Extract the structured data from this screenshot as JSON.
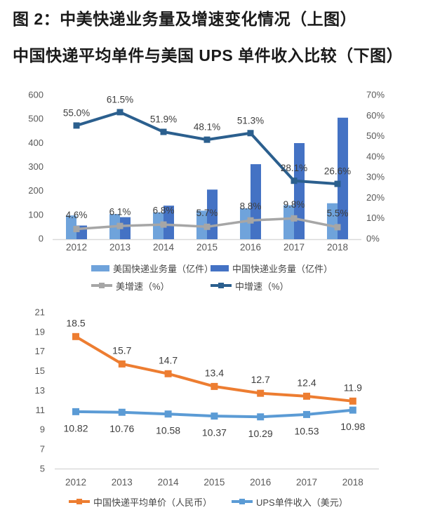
{
  "title": {
    "line1": "图 2：中美快递业务量及增速变化情况（上图）",
    "line2": "中国快递平均单件与美国 UPS 单件收入比较（下图）"
  },
  "colors": {
    "title_text": "#1a1a1a",
    "axis_text": "#595959",
    "data_label_text": "#3d3d3d",
    "axis_line": "#d9d9d9",
    "us_volume_bar": "#6fa3db",
    "cn_volume_bar": "#4472c4",
    "us_growth_line": "#a6a6a6",
    "cn_growth_line": "#2b5f8e",
    "cn_price_line": "#ed7d31",
    "ups_revenue_line": "#5b9bd5"
  },
  "chart_data": [
    {
      "type": "bar",
      "subtype": "combo-bar-line-dual-axis",
      "categories": [
        "2012",
        "2013",
        "2014",
        "2015",
        "2016",
        "2017",
        "2018"
      ],
      "bar_series": [
        {
          "name": "美国快递业务量（亿件）",
          "axis": "left",
          "color": "#6fa3db",
          "values": [
            99,
            105,
            112,
            119,
            129,
            142,
            150
          ]
        },
        {
          "name": "中国快递业务量（亿件）",
          "axis": "left",
          "color": "#4472c4",
          "values": [
            57,
            92,
            140,
            207,
            313,
            401,
            507
          ]
        }
      ],
      "line_series": [
        {
          "name": "美增速（%）",
          "axis": "right",
          "color": "#a6a6a6",
          "values": [
            4.6,
            6.1,
            6.8,
            5.7,
            8.8,
            9.8,
            5.5
          ],
          "labels": [
            "4.6%",
            "6.1%",
            "6.8%",
            "5.7%",
            "8.8%",
            "9.8%",
            "5.5%"
          ],
          "label_pos": "above"
        },
        {
          "name": "中增速（%）",
          "axis": "right",
          "color": "#2b5f8e",
          "values": [
            55.0,
            61.5,
            51.9,
            48.1,
            51.3,
            28.1,
            26.6
          ],
          "labels": [
            "55.0%",
            "61.5%",
            "51.9%",
            "48.1%",
            "51.3%",
            "28.1%",
            "26.6%"
          ],
          "label_pos": "above"
        }
      ],
      "left_axis": {
        "min": 0,
        "max": 600,
        "step": 100,
        "ticks": [
          "0",
          "100",
          "200",
          "300",
          "400",
          "500",
          "600"
        ]
      },
      "right_axis": {
        "min": 0,
        "max": 70,
        "step": 10,
        "ticks": [
          "0%",
          "10%",
          "20%",
          "30%",
          "40%",
          "50%",
          "60%",
          "70%"
        ]
      },
      "grid": "off",
      "legend_position": "bottom"
    },
    {
      "type": "line",
      "categories": [
        "2012",
        "2013",
        "2014",
        "2015",
        "2016",
        "2017",
        "2018"
      ],
      "series": [
        {
          "name": "中国快递平均单价（人民币）",
          "color": "#ed7d31",
          "values": [
            18.5,
            15.7,
            14.7,
            13.4,
            12.7,
            12.4,
            11.9
          ],
          "labels": [
            "18.5",
            "15.7",
            "14.7",
            "13.4",
            "12.7",
            "12.4",
            "11.9"
          ],
          "label_pos": "above"
        },
        {
          "name": "UPS单件收入（美元）",
          "color": "#5b9bd5",
          "values": [
            10.82,
            10.76,
            10.58,
            10.37,
            10.29,
            10.53,
            10.98
          ],
          "labels": [
            "10.82",
            "10.76",
            "10.58",
            "10.37",
            "10.29",
            "10.53",
            "10.98"
          ],
          "label_pos": "below"
        }
      ],
      "y_axis": {
        "min": 5,
        "max": 21,
        "step": 2,
        "ticks": [
          "5",
          "7",
          "9",
          "11",
          "13",
          "15",
          "17",
          "19",
          "21"
        ]
      },
      "grid": "off",
      "legend_position": "bottom"
    }
  ]
}
